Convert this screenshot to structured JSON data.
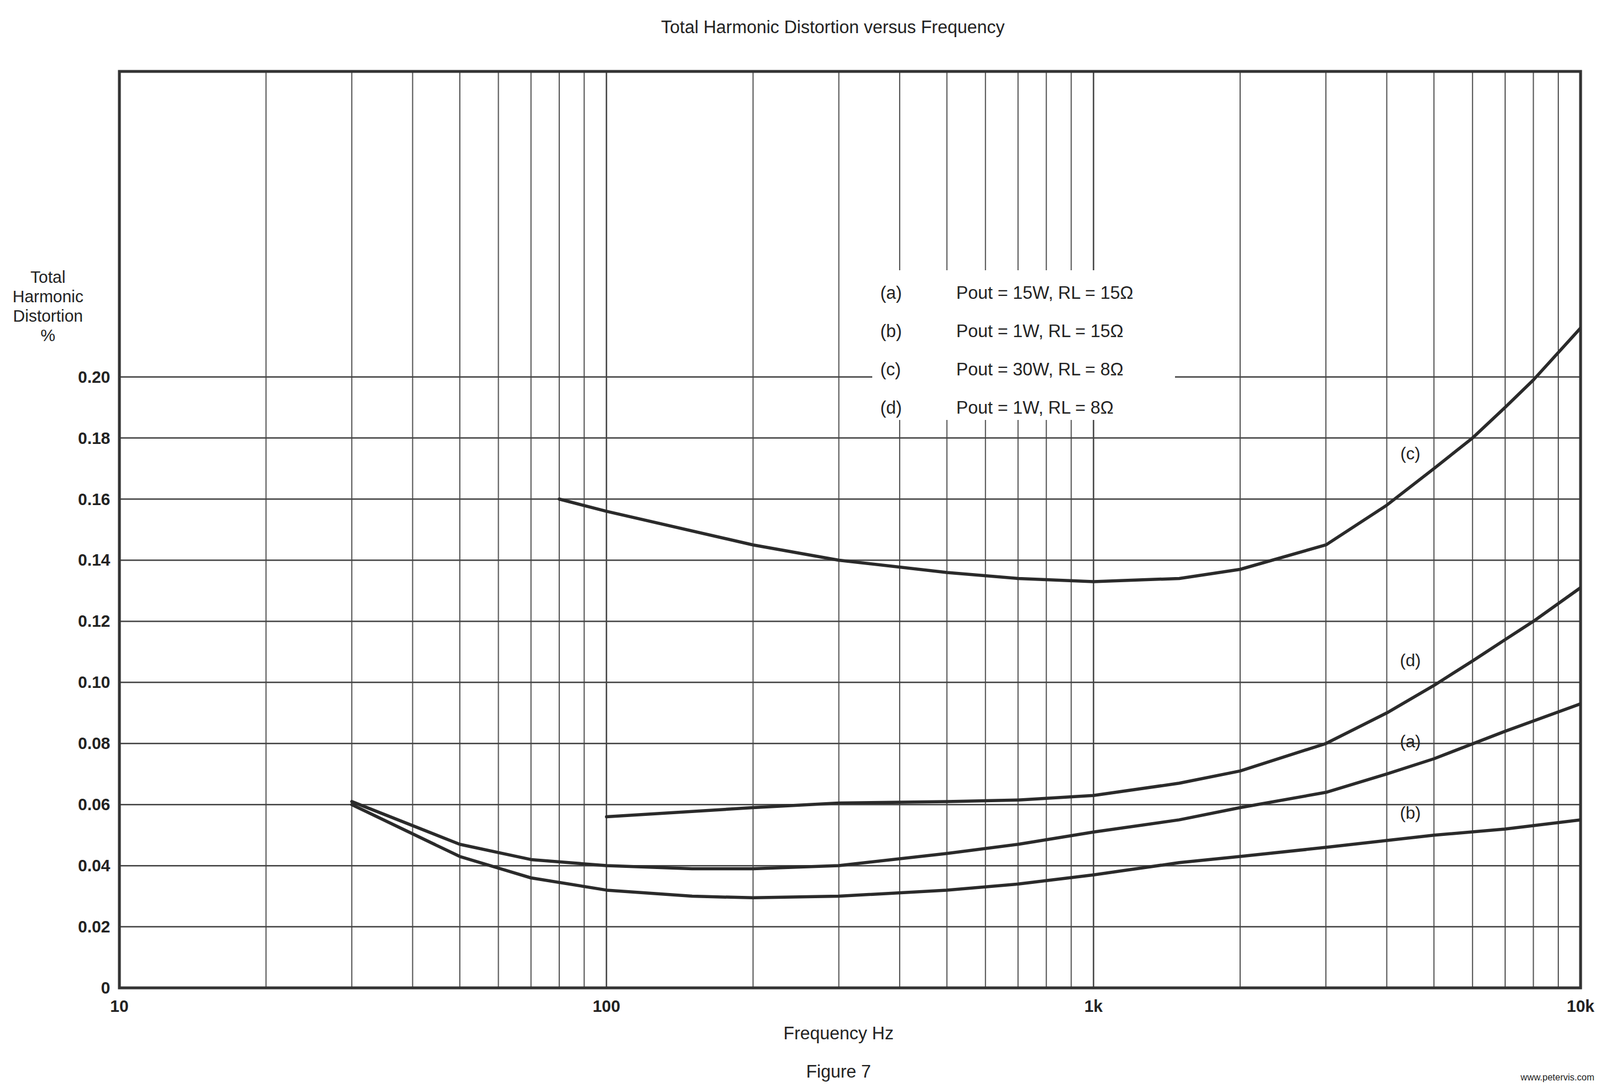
{
  "chart_data": {
    "type": "line",
    "title": "Total Harmonic Distortion versus Frequency",
    "x_label": "Frequency Hz",
    "y_label": "Total Harmonic Distortion %",
    "caption": "Figure 7",
    "watermark": "www.petervis.com",
    "log": "x",
    "grid": true,
    "legend": "top",
    "xlim": [
      10,
      10000
    ],
    "ylim": [
      0,
      0.3
    ],
    "xticks": [
      10,
      100,
      {
        "value": 1000,
        "label": "1k"
      },
      {
        "value": 10000,
        "label": "10k"
      }
    ],
    "yticks": [
      0,
      0.02,
      0.04,
      0.06,
      0.08,
      {
        "value": 0.1,
        "label": "0.10"
      },
      0.12,
      0.14,
      0.16,
      0.18,
      {
        "value": 0.2,
        "label": "0.20"
      }
    ],
    "series": [
      {
        "label": "(a)",
        "name": "Pout = 15W, RL = 15Ω",
        "color": "#2a2a2a",
        "x": [
          30,
          50,
          70,
          100,
          150,
          200,
          300,
          500,
          700,
          1000,
          1500,
          2000,
          3000,
          4000,
          5000,
          7000,
          10000
        ],
        "values": [
          0.061,
          0.047,
          0.042,
          0.04,
          0.039,
          0.039,
          0.04,
          0.044,
          0.047,
          0.051,
          0.055,
          0.059,
          0.064,
          0.07,
          0.075,
          0.084,
          0.093
        ]
      },
      {
        "label": "(b)",
        "name": "Pout = 1W, RL = 15Ω",
        "color": "#2a2a2a",
        "x": [
          30,
          50,
          70,
          100,
          150,
          200,
          300,
          500,
          700,
          1000,
          1500,
          2000,
          3000,
          5000,
          7000,
          10000
        ],
        "values": [
          0.06,
          0.043,
          0.036,
          0.032,
          0.03,
          0.0295,
          0.03,
          0.032,
          0.034,
          0.037,
          0.041,
          0.043,
          0.046,
          0.05,
          0.052,
          0.055
        ]
      },
      {
        "label": "(c)",
        "name": "Pout = 30W, RL = 8Ω",
        "color": "#2a2a2a",
        "x": [
          80,
          100,
          200,
          300,
          500,
          700,
          1000,
          1500,
          2000,
          3000,
          4000,
          5000,
          6000,
          7000,
          8000,
          10000
        ],
        "values": [
          0.16,
          0.156,
          0.145,
          0.14,
          0.136,
          0.134,
          0.133,
          0.134,
          0.137,
          0.145,
          0.158,
          0.17,
          0.18,
          0.19,
          0.199,
          0.216
        ]
      },
      {
        "label": "(d)",
        "name": "Pout = 1W, RL = 8Ω",
        "color": "#2a2a2a",
        "x": [
          100,
          200,
          300,
          500,
          700,
          1000,
          1500,
          2000,
          3000,
          4000,
          5000,
          6000,
          7000,
          8000,
          10000
        ],
        "values": [
          0.056,
          0.059,
          0.0605,
          0.061,
          0.0615,
          0.063,
          0.067,
          0.071,
          0.08,
          0.09,
          0.099,
          0.107,
          0.114,
          0.12,
          0.131
        ]
      }
    ]
  }
}
